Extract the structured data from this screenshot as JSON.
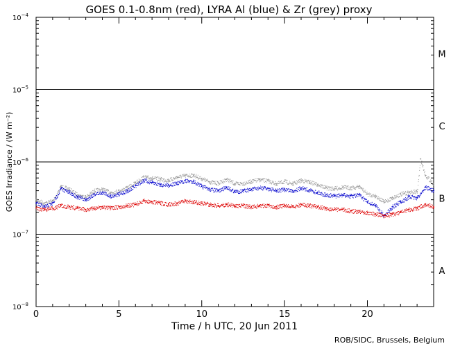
{
  "chart_data": {
    "type": "scatter",
    "title": "GOES 0.1-0.8nm (red), LYRA Al (blue) & Zr (grey) proxy",
    "xlabel": "Time / h UTC, 20 Jun 2011",
    "ylabel": "GOES Irradiance / (W m⁻²)",
    "credit": "ROB/SIDC, Brussels, Belgium",
    "xlim": [
      0,
      24
    ],
    "ylim": [
      1e-08,
      0.0001
    ],
    "yscale": "log",
    "x_ticks": [
      0,
      5,
      10,
      15,
      20
    ],
    "x_tick_labels": [
      "0",
      "5",
      "10",
      "15",
      "20"
    ],
    "y_ticks": [
      {
        "base": "10",
        "exp": "−8",
        "value": 1e-08
      },
      {
        "base": "10",
        "exp": "−7",
        "value": 1e-07
      },
      {
        "base": "10",
        "exp": "−6",
        "value": 1e-06
      },
      {
        "base": "10",
        "exp": "−5",
        "value": 1e-05
      },
      {
        "base": "10",
        "exp": "−4",
        "value": 0.0001
      }
    ],
    "flare_classes": [
      {
        "label": "A",
        "level": 1e-08
      },
      {
        "label": "B",
        "level": 1e-07
      },
      {
        "label": "C",
        "level": 1e-06
      },
      {
        "label": "M",
        "level": 1e-05
      }
    ],
    "class_lines": [
      1e-07,
      1e-06,
      1e-05
    ],
    "grid": false,
    "series": [
      {
        "color": "#9a9a9a",
        "x": [
          0,
          0.5,
          1,
          1.5,
          2,
          2.5,
          3,
          3.5,
          4,
          4.5,
          5,
          5.5,
          6,
          6.5,
          7,
          7.5,
          8,
          8.5,
          9,
          9.5,
          10,
          10.5,
          11,
          11.5,
          12,
          12.5,
          13,
          13.5,
          14,
          14.5,
          15,
          15.5,
          16,
          16.5,
          17,
          17.5,
          18,
          18.5,
          19,
          19.5,
          20,
          20.5,
          21,
          21.5,
          22,
          22.5,
          23,
          23.2,
          23.5,
          24
        ],
        "y": [
          3e-07,
          2.7e-07,
          2.9e-07,
          4.6e-07,
          4.2e-07,
          3.5e-07,
          3.3e-07,
          4e-07,
          4.2e-07,
          3.8e-07,
          4e-07,
          4.4e-07,
          5.2e-07,
          6.2e-07,
          6e-07,
          5.8e-07,
          5.6e-07,
          6.2e-07,
          6.5e-07,
          6.6e-07,
          5.9e-07,
          5.3e-07,
          5.1e-07,
          5.8e-07,
          5e-07,
          5.1e-07,
          5.4e-07,
          5.7e-07,
          5.5e-07,
          5e-07,
          5.4e-07,
          5e-07,
          5.6e-07,
          5.3e-07,
          4.9e-07,
          4.4e-07,
          4.3e-07,
          4.5e-07,
          4.4e-07,
          4.6e-07,
          3.6e-07,
          3.4e-07,
          2.8e-07,
          3.2e-07,
          3.6e-07,
          3.8e-07,
          3.9e-07,
          1.1e-06,
          6.5e-07,
          5e-07
        ]
      },
      {
        "color": "#0000cc",
        "x": [
          0,
          0.5,
          1,
          1.5,
          2,
          2.5,
          3,
          3.5,
          4,
          4.5,
          5,
          5.5,
          6,
          6.5,
          7,
          7.5,
          8,
          8.5,
          9,
          9.5,
          10,
          10.5,
          11,
          11.5,
          12,
          12.5,
          13,
          13.5,
          14,
          14.5,
          15,
          15.5,
          16,
          16.5,
          17,
          17.5,
          18,
          18.5,
          19,
          19.5,
          20,
          20.5,
          21,
          21.5,
          22,
          22.5,
          23,
          23.5,
          24
        ],
        "y": [
          2.7e-07,
          2.4e-07,
          2.7e-07,
          4.3e-07,
          3.8e-07,
          3.3e-07,
          3e-07,
          3.6e-07,
          3.8e-07,
          3.4e-07,
          3.6e-07,
          4e-07,
          4.7e-07,
          5.6e-07,
          5.2e-07,
          4.9e-07,
          4.8e-07,
          5.1e-07,
          5.5e-07,
          5.4e-07,
          4.6e-07,
          4.2e-07,
          4e-07,
          4.5e-07,
          3.9e-07,
          4e-07,
          4.2e-07,
          4.4e-07,
          4.3e-07,
          4e-07,
          4.2e-07,
          4e-07,
          4.4e-07,
          4.1e-07,
          3.8e-07,
          3.5e-07,
          3.4e-07,
          3.5e-07,
          3.4e-07,
          3.5e-07,
          2.8e-07,
          2.5e-07,
          1.8e-07,
          2.4e-07,
          2.8e-07,
          3.3e-07,
          3.2e-07,
          4.5e-07,
          4e-07
        ]
      },
      {
        "color": "#dd0000",
        "x": [
          0,
          0.5,
          1,
          1.5,
          2,
          2.5,
          3,
          3.5,
          4,
          4.5,
          5,
          5.5,
          6,
          6.5,
          7,
          7.5,
          8,
          8.5,
          9,
          9.5,
          10,
          10.5,
          11,
          11.5,
          12,
          12.5,
          13,
          13.5,
          14,
          14.5,
          15,
          15.5,
          16,
          16.5,
          17,
          17.5,
          18,
          18.5,
          19,
          19.5,
          20,
          20.5,
          21,
          21.5,
          22,
          22.5,
          23,
          23.5,
          24
        ],
        "y": [
          2.3e-07,
          2.2e-07,
          2.3e-07,
          2.5e-07,
          2.4e-07,
          2.3e-07,
          2.2e-07,
          2.3e-07,
          2.4e-07,
          2.3e-07,
          2.4e-07,
          2.5e-07,
          2.6e-07,
          2.9e-07,
          2.8e-07,
          2.7e-07,
          2.6e-07,
          2.7e-07,
          2.9e-07,
          2.8e-07,
          2.7e-07,
          2.6e-07,
          2.5e-07,
          2.6e-07,
          2.5e-07,
          2.5e-07,
          2.4e-07,
          2.5e-07,
          2.5e-07,
          2.4e-07,
          2.5e-07,
          2.4e-07,
          2.6e-07,
          2.5e-07,
          2.4e-07,
          2.3e-07,
          2.2e-07,
          2.2e-07,
          2.1e-07,
          2.1e-07,
          2e-07,
          1.9e-07,
          1.8e-07,
          1.9e-07,
          2e-07,
          2.2e-07,
          2.3e-07,
          2.6e-07,
          2.4e-07
        ]
      }
    ]
  }
}
